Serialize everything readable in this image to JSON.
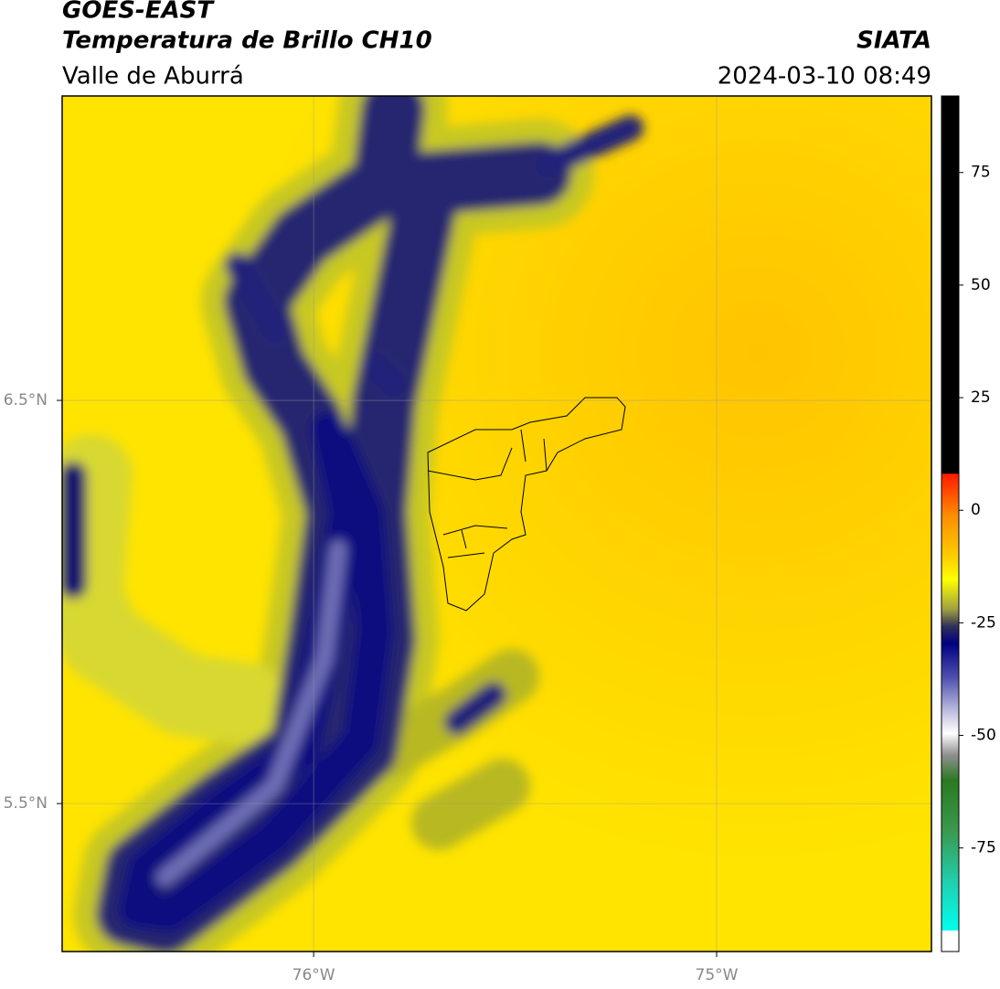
{
  "header": {
    "satellite": "GOES-EAST",
    "product": "Temperatura de Brillo CH10",
    "region": "Valle de Aburrá",
    "source": "SIATA",
    "datetime": "2024-03-10 08:49"
  },
  "map": {
    "xlim": [
      -76.624,
      -74.467
    ],
    "ylim": [
      5.133,
      7.255
    ],
    "xticks": [
      {
        "value": -76,
        "label": "76°W"
      },
      {
        "value": -75,
        "label": "75°W"
      }
    ],
    "yticks": [
      {
        "value": 6.5,
        "label": "6.5°N"
      },
      {
        "value": 5.5,
        "label": "5.5°N"
      }
    ]
  },
  "colorbar": {
    "lim": [
      -98,
      92
    ],
    "ticks": [
      75,
      50,
      25,
      0,
      -25,
      -50,
      -75
    ]
  }
}
